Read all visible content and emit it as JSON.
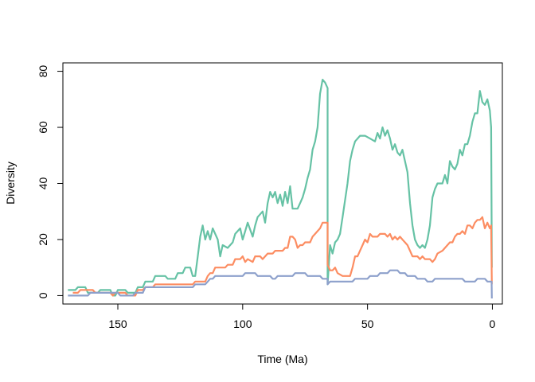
{
  "chart_data": {
    "type": "line",
    "title": "",
    "xlabel": "Time (Ma)",
    "ylabel": "Diversity",
    "xlim": [
      172,
      -4
    ],
    "ylim": [
      -3,
      83
    ],
    "x_ticks": [
      150,
      100,
      50,
      0
    ],
    "y_ticks": [
      0,
      20,
      40,
      60,
      80
    ],
    "grid": false,
    "legend": "none",
    "series": [
      {
        "color": "#66c2a5",
        "points": [
          [
            170,
            2
          ],
          [
            167,
            2
          ],
          [
            166,
            3
          ],
          [
            163,
            3
          ],
          [
            162,
            1
          ],
          [
            158,
            1
          ],
          [
            157,
            2
          ],
          [
            153,
            2
          ],
          [
            152,
            0
          ],
          [
            151,
            0
          ],
          [
            150,
            2
          ],
          [
            147,
            2
          ],
          [
            146,
            1
          ],
          [
            143,
            1
          ],
          [
            142,
            3
          ],
          [
            140,
            3
          ],
          [
            139,
            5
          ],
          [
            136,
            5
          ],
          [
            135,
            7
          ],
          [
            131,
            7
          ],
          [
            130,
            6
          ],
          [
            127,
            6
          ],
          [
            126,
            8
          ],
          [
            124,
            8
          ],
          [
            123,
            10
          ],
          [
            121,
            10
          ],
          [
            120,
            7
          ],
          [
            119,
            7
          ],
          [
            118,
            14
          ],
          [
            117,
            21
          ],
          [
            116,
            25
          ],
          [
            115,
            20
          ],
          [
            114,
            23
          ],
          [
            113,
            20
          ],
          [
            112,
            24
          ],
          [
            110,
            20
          ],
          [
            109,
            14
          ],
          [
            108,
            18
          ],
          [
            106,
            17
          ],
          [
            104,
            19
          ],
          [
            103,
            22
          ],
          [
            101,
            24
          ],
          [
            100,
            20
          ],
          [
            99,
            23
          ],
          [
            98,
            26
          ],
          [
            96,
            21
          ],
          [
            95,
            25
          ],
          [
            94,
            28
          ],
          [
            92,
            30
          ],
          [
            91,
            26
          ],
          [
            90,
            33
          ],
          [
            89,
            37
          ],
          [
            88,
            35
          ],
          [
            87,
            37
          ],
          [
            86,
            33
          ],
          [
            85,
            36
          ],
          [
            84,
            32
          ],
          [
            83,
            37
          ],
          [
            82,
            33
          ],
          [
            81,
            39
          ],
          [
            80,
            31
          ],
          [
            78,
            31
          ],
          [
            77,
            33
          ],
          [
            76,
            35
          ],
          [
            75,
            38
          ],
          [
            74,
            42
          ],
          [
            73,
            45
          ],
          [
            72,
            52
          ],
          [
            71,
            55
          ],
          [
            70,
            60
          ],
          [
            69,
            72
          ],
          [
            68,
            77
          ],
          [
            67,
            76
          ],
          [
            66,
            74
          ],
          [
            66,
            4
          ],
          [
            65,
            18
          ],
          [
            64,
            15
          ],
          [
            63,
            19
          ],
          [
            62,
            20
          ],
          [
            61,
            22
          ],
          [
            60,
            28
          ],
          [
            59,
            34
          ],
          [
            58,
            40
          ],
          [
            57,
            48
          ],
          [
            56,
            52
          ],
          [
            55,
            55
          ],
          [
            53,
            57
          ],
          [
            51,
            57
          ],
          [
            49,
            56
          ],
          [
            47,
            55
          ],
          [
            46,
            58
          ],
          [
            45,
            56
          ],
          [
            44,
            60
          ],
          [
            43,
            57
          ],
          [
            42,
            59
          ],
          [
            41,
            56
          ],
          [
            40,
            52
          ],
          [
            39,
            54
          ],
          [
            38,
            51
          ],
          [
            37,
            50
          ],
          [
            36,
            52
          ],
          [
            34,
            44
          ],
          [
            33,
            33
          ],
          [
            32,
            25
          ],
          [
            31,
            20
          ],
          [
            30,
            18
          ],
          [
            29,
            17
          ],
          [
            28,
            18
          ],
          [
            27,
            17
          ],
          [
            26,
            20
          ],
          [
            25,
            25
          ],
          [
            24,
            35
          ],
          [
            23,
            38
          ],
          [
            22,
            40
          ],
          [
            20,
            40
          ],
          [
            19,
            43
          ],
          [
            18,
            40
          ],
          [
            17,
            48
          ],
          [
            16,
            46
          ],
          [
            15,
            45
          ],
          [
            14,
            47
          ],
          [
            13,
            52
          ],
          [
            12,
            50
          ],
          [
            11,
            54
          ],
          [
            10,
            54
          ],
          [
            9,
            57
          ],
          [
            8,
            62
          ],
          [
            7,
            65
          ],
          [
            6,
            65
          ],
          [
            5,
            73
          ],
          [
            4,
            69
          ],
          [
            3,
            68
          ],
          [
            2,
            70
          ],
          [
            1,
            66
          ],
          [
            0.5,
            60
          ],
          [
            0.2,
            10
          ]
        ]
      },
      {
        "color": "#fc8d62",
        "points": [
          [
            168,
            1
          ],
          [
            166,
            1
          ],
          [
            165,
            2
          ],
          [
            160,
            2
          ],
          [
            159,
            1
          ],
          [
            153,
            1
          ],
          [
            152,
            0
          ],
          [
            151,
            1
          ],
          [
            147,
            1
          ],
          [
            146,
            0
          ],
          [
            143,
            0
          ],
          [
            142,
            2
          ],
          [
            140,
            2
          ],
          [
            139,
            3
          ],
          [
            136,
            3
          ],
          [
            135,
            4
          ],
          [
            120,
            4
          ],
          [
            119,
            5
          ],
          [
            115,
            5
          ],
          [
            114,
            7
          ],
          [
            113,
            8
          ],
          [
            112,
            8
          ],
          [
            111,
            10
          ],
          [
            107,
            10
          ],
          [
            106,
            11
          ],
          [
            104,
            11
          ],
          [
            103,
            13
          ],
          [
            101,
            13
          ],
          [
            100,
            14
          ],
          [
            99,
            12
          ],
          [
            98,
            13
          ],
          [
            96,
            12
          ],
          [
            95,
            14
          ],
          [
            93,
            14
          ],
          [
            92,
            13
          ],
          [
            90,
            15
          ],
          [
            88,
            15
          ],
          [
            87,
            16
          ],
          [
            84,
            16
          ],
          [
            83,
            17
          ],
          [
            82,
            17
          ],
          [
            81,
            21
          ],
          [
            80,
            21
          ],
          [
            79,
            20
          ],
          [
            78,
            17
          ],
          [
            77,
            18
          ],
          [
            76,
            18
          ],
          [
            75,
            19
          ],
          [
            73,
            19
          ],
          [
            72,
            21
          ],
          [
            71,
            22
          ],
          [
            70,
            23
          ],
          [
            69,
            24
          ],
          [
            68,
            26
          ],
          [
            66,
            26
          ],
          [
            66,
            11
          ],
          [
            65,
            9
          ],
          [
            64,
            9
          ],
          [
            63,
            10
          ],
          [
            62,
            8
          ],
          [
            60,
            7
          ],
          [
            57,
            7
          ],
          [
            56,
            10
          ],
          [
            55,
            14
          ],
          [
            54,
            14
          ],
          [
            53,
            16
          ],
          [
            52,
            18
          ],
          [
            51,
            20
          ],
          [
            50,
            19
          ],
          [
            49,
            22
          ],
          [
            48,
            21
          ],
          [
            46,
            21
          ],
          [
            45,
            22
          ],
          [
            43,
            22
          ],
          [
            42,
            21
          ],
          [
            41,
            22
          ],
          [
            40,
            20
          ],
          [
            39,
            21
          ],
          [
            38,
            20
          ],
          [
            37,
            21
          ],
          [
            36,
            20
          ],
          [
            35,
            19
          ],
          [
            34,
            18
          ],
          [
            33,
            16
          ],
          [
            32,
            14
          ],
          [
            30,
            14
          ],
          [
            29,
            13
          ],
          [
            28,
            14
          ],
          [
            27,
            13
          ],
          [
            25,
            13
          ],
          [
            24,
            12
          ],
          [
            23,
            13
          ],
          [
            22,
            15
          ],
          [
            20,
            16
          ],
          [
            19,
            17
          ],
          [
            18,
            18
          ],
          [
            17,
            19
          ],
          [
            16,
            19
          ],
          [
            15,
            21
          ],
          [
            14,
            22
          ],
          [
            13,
            22
          ],
          [
            12,
            23
          ],
          [
            11,
            22
          ],
          [
            10,
            25
          ],
          [
            9,
            25
          ],
          [
            8,
            24
          ],
          [
            7,
            26
          ],
          [
            6,
            27
          ],
          [
            5,
            27
          ],
          [
            4,
            28
          ],
          [
            3,
            24
          ],
          [
            2,
            26
          ],
          [
            1,
            24
          ],
          [
            0.5,
            25
          ],
          [
            0.2,
            4
          ]
        ]
      },
      {
        "color": "#8da0cb",
        "points": [
          [
            170,
            0
          ],
          [
            162,
            0
          ],
          [
            161,
            1
          ],
          [
            150,
            1
          ],
          [
            149,
            0
          ],
          [
            144,
            0
          ],
          [
            143,
            1
          ],
          [
            140,
            1
          ],
          [
            139,
            3
          ],
          [
            120,
            3
          ],
          [
            119,
            4
          ],
          [
            115,
            4
          ],
          [
            114,
            5
          ],
          [
            113,
            6
          ],
          [
            112,
            6
          ],
          [
            111,
            7
          ],
          [
            100,
            7
          ],
          [
            99,
            8
          ],
          [
            95,
            8
          ],
          [
            94,
            7
          ],
          [
            89,
            7
          ],
          [
            88,
            6
          ],
          [
            87,
            6
          ],
          [
            86,
            7
          ],
          [
            80,
            7
          ],
          [
            79,
            8
          ],
          [
            75,
            8
          ],
          [
            74,
            7
          ],
          [
            69,
            7
          ],
          [
            68,
            6
          ],
          [
            66,
            6
          ],
          [
            66,
            4
          ],
          [
            65,
            5
          ],
          [
            56,
            5
          ],
          [
            55,
            6
          ],
          [
            50,
            6
          ],
          [
            49,
            7
          ],
          [
            46,
            7
          ],
          [
            45,
            8
          ],
          [
            42,
            8
          ],
          [
            41,
            9
          ],
          [
            38,
            9
          ],
          [
            37,
            8
          ],
          [
            35,
            8
          ],
          [
            34,
            7
          ],
          [
            31,
            7
          ],
          [
            30,
            6
          ],
          [
            27,
            6
          ],
          [
            26,
            5
          ],
          [
            24,
            5
          ],
          [
            23,
            6
          ],
          [
            12,
            6
          ],
          [
            11,
            5
          ],
          [
            7,
            5
          ],
          [
            6,
            6
          ],
          [
            3,
            6
          ],
          [
            2,
            5
          ],
          [
            0.3,
            5
          ],
          [
            0.2,
            -1
          ]
        ]
      }
    ]
  }
}
